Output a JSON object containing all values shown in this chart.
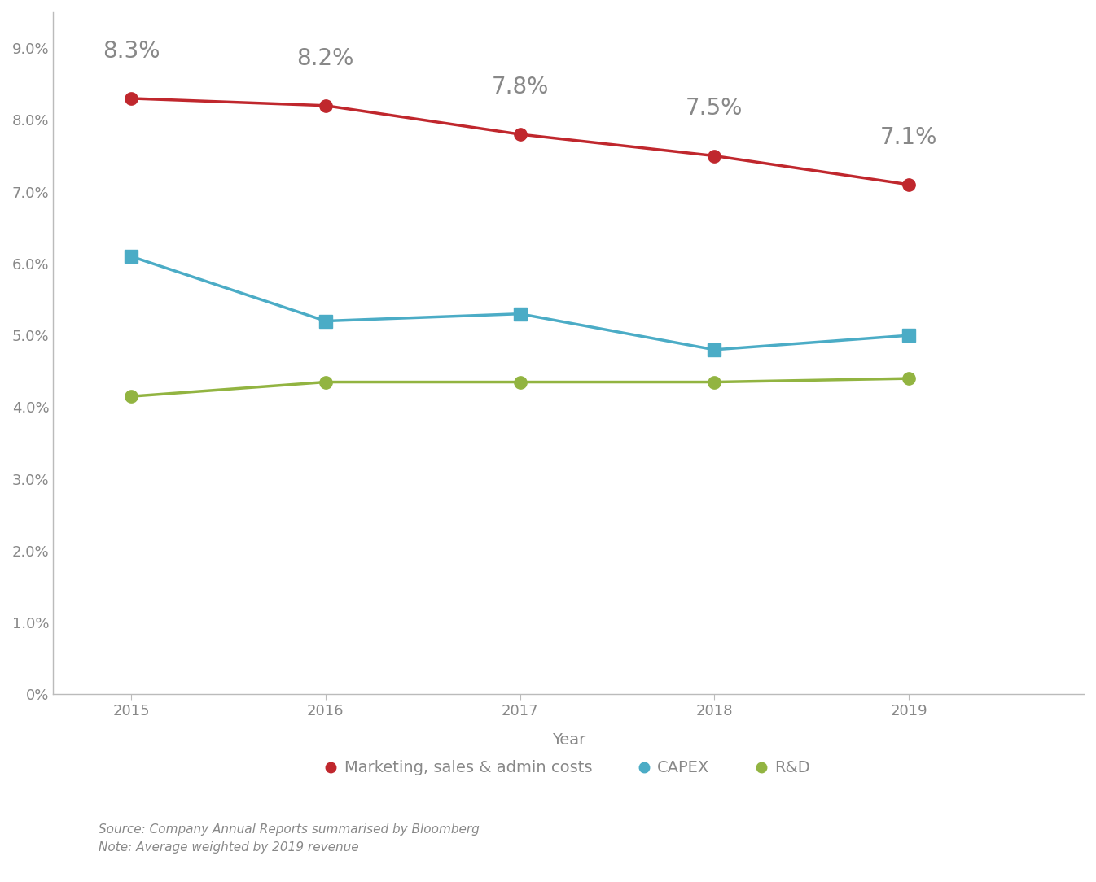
{
  "years": [
    2015,
    2016,
    2017,
    2018,
    2019
  ],
  "marketing": [
    0.083,
    0.082,
    0.078,
    0.075,
    0.071
  ],
  "capex": [
    0.061,
    0.052,
    0.053,
    0.048,
    0.05
  ],
  "rd": [
    0.0415,
    0.0435,
    0.0435,
    0.0435,
    0.044
  ],
  "marketing_labels": [
    "8.3%",
    "8.2%",
    "7.8%",
    "7.5%",
    "7.1%"
  ],
  "marketing_color": "#c0272d",
  "capex_color": "#4bacc6",
  "rd_color": "#92b441",
  "label_color": "#888888",
  "ylabel_ticks": [
    0.0,
    0.01,
    0.02,
    0.03,
    0.04,
    0.05,
    0.06,
    0.07,
    0.08,
    0.09
  ],
  "ylabel_labels": [
    "0%",
    "1.0%",
    "2.0%",
    "3.0%",
    "4.0%",
    "5.0%",
    "6.0%",
    "7.0%",
    "8.0%",
    "9.0%"
  ],
  "xlabel": "Year",
  "source_text": "Source: Company Annual Reports summarised by Bloomberg",
  "note_text": "Note: Average weighted by 2019 revenue",
  "legend_labels": [
    "Marketing, sales & admin costs",
    "CAPEX",
    "R&D"
  ],
  "background_color": "#ffffff",
  "line_width": 2.5,
  "marker_size_circle": 11,
  "marker_size_square": 11,
  "annotation_fontsize": 20,
  "axis_fontsize": 13,
  "legend_fontsize": 14,
  "source_fontsize": 11,
  "spine_color": "#bbbbbb",
  "tick_color": "#888888"
}
